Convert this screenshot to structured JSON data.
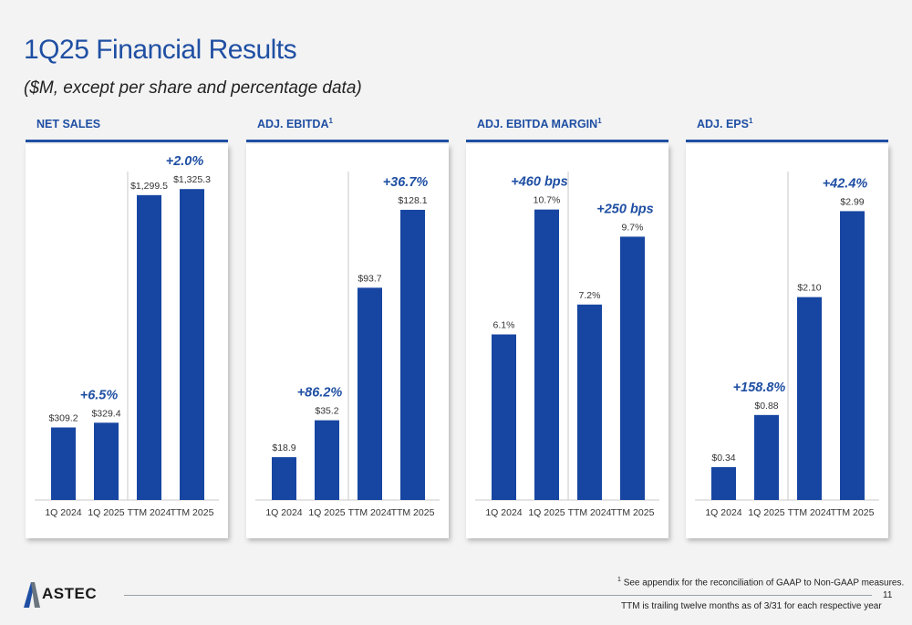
{
  "header": {
    "title": "1Q25 Financial Results",
    "subtitle": "($M, except per share and percentage data)"
  },
  "colors": {
    "bar": "#1746a2",
    "accent": "#1f4fa3",
    "growth_text": "#1f4fa3"
  },
  "chart_data": [
    {
      "type": "bar",
      "title": "NET SALES",
      "title_sup": "",
      "categories": [
        "1Q 2024",
        "1Q 2025",
        "TTM 2024",
        "TTM 2025"
      ],
      "values": [
        309.2,
        329.4,
        1299.5,
        1325.3
      ],
      "labels": [
        "$309.2",
        "$329.4",
        "$1,299.5",
        "$1,325.3"
      ],
      "ylim": [
        0,
        1400
      ],
      "annotations": [
        {
          "text": "+6.5%",
          "over": 1
        },
        {
          "text": "+2.0%",
          "over": 3
        }
      ]
    },
    {
      "type": "bar",
      "title": "ADJ. EBITDA",
      "title_sup": "1",
      "categories": [
        "1Q 2024",
        "1Q 2025",
        "TTM 2024",
        "TTM 2025"
      ],
      "values": [
        18.9,
        35.2,
        93.7,
        128.1
      ],
      "labels": [
        "$18.9",
        "$35.2",
        "$93.7",
        "$128.1"
      ],
      "ylim": [
        0,
        145
      ],
      "annotations": [
        {
          "text": "+86.2%",
          "over": 1
        },
        {
          "text": "+36.7%",
          "over": 3
        }
      ]
    },
    {
      "type": "bar",
      "title": "ADJ. EBITDA MARGIN",
      "title_sup": "1",
      "categories": [
        "1Q 2024",
        "1Q 2025",
        "TTM 2024",
        "TTM 2025"
      ],
      "values": [
        6.1,
        10.7,
        7.2,
        9.7
      ],
      "labels": [
        "6.1%",
        "10.7%",
        "7.2%",
        "9.7%"
      ],
      "ylim": [
        0,
        12.1
      ],
      "annotations": [
        {
          "text": "+460 bps",
          "over": 1
        },
        {
          "text": "+250 bps",
          "over": 3
        }
      ]
    },
    {
      "type": "bar",
      "title": "ADJ. EPS",
      "title_sup": "1",
      "categories": [
        "1Q 2024",
        "1Q 2025",
        "TTM 2024",
        "TTM 2025"
      ],
      "values": [
        0.34,
        0.88,
        2.1,
        2.99
      ],
      "labels": [
        "$0.34",
        "$0.88",
        "$2.10",
        "$2.99"
      ],
      "ylim": [
        0,
        3.4
      ],
      "annotations": [
        {
          "text": "+158.8%",
          "over": 1
        },
        {
          "text": "+42.4%",
          "over": 3
        }
      ]
    }
  ],
  "footer": {
    "footnote_sup": "1",
    "footnote": "See appendix for the reconciliation of GAAP to Non-GAAP measures.",
    "ttm_note": "TTM is trailing twelve months as of 3/31 for each respective year",
    "page_number": "11",
    "logo_text": "ASTEC"
  }
}
